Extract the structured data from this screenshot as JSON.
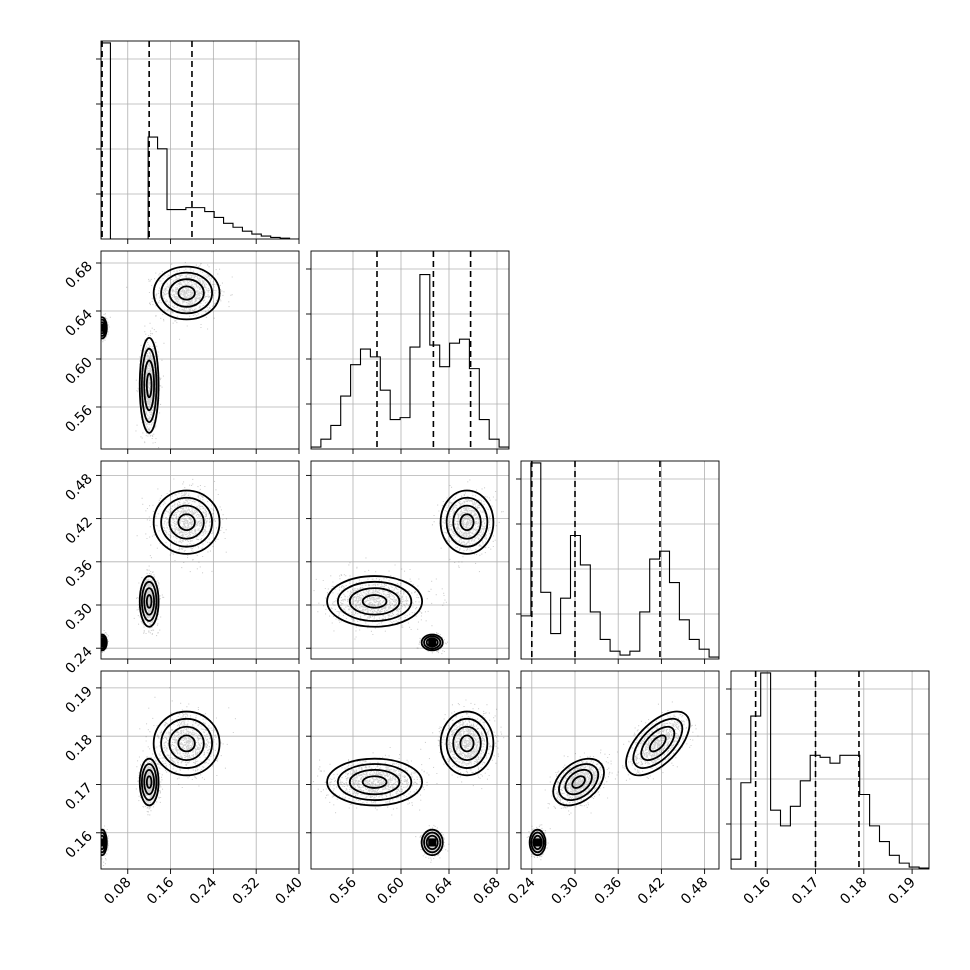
{
  "chart_data": {
    "type": "corner",
    "parameters": [
      {
        "range": [
          0.03,
          0.4
        ],
        "ticks": [
          0.08,
          0.16,
          0.24,
          0.32,
          0.4
        ],
        "tick_labels": [
          "0.08",
          "0.16",
          "0.24",
          "0.32",
          "0.40"
        ],
        "quantiles": [
          0.032,
          0.12,
          0.2
        ],
        "hist": [
          1.0,
          0.0,
          0.0,
          0.0,
          0.0,
          0.52,
          0.46,
          0.15,
          0.15,
          0.16,
          0.16,
          0.14,
          0.11,
          0.08,
          0.06,
          0.04,
          0.025,
          0.015,
          0.008,
          0.004,
          0.0
        ]
      },
      {
        "range": [
          0.525,
          0.69
        ],
        "ticks": [
          0.56,
          0.6,
          0.64,
          0.68
        ],
        "tick_labels": [
          "0.56",
          "0.60",
          "0.64",
          "0.68"
        ],
        "quantiles": [
          0.58,
          0.627,
          0.658
        ],
        "hist": [
          0.01,
          0.05,
          0.12,
          0.27,
          0.43,
          0.51,
          0.47,
          0.3,
          0.15,
          0.16,
          0.52,
          0.89,
          0.53,
          0.42,
          0.54,
          0.56,
          0.41,
          0.15,
          0.05,
          0.01
        ]
      },
      {
        "range": [
          0.225,
          0.5
        ],
        "ticks": [
          0.24,
          0.3,
          0.36,
          0.42,
          0.48
        ],
        "tick_labels": [
          "0.24",
          "0.30",
          "0.36",
          "0.42",
          "0.48"
        ],
        "quantiles": [
          0.24,
          0.3,
          0.418
        ],
        "hist": [
          0.22,
          1.0,
          0.34,
          0.13,
          0.31,
          0.63,
          0.48,
          0.24,
          0.1,
          0.04,
          0.02,
          0.04,
          0.24,
          0.51,
          0.55,
          0.39,
          0.2,
          0.1,
          0.05,
          0.01
        ]
      },
      {
        "range": [
          0.1525,
          0.1935
        ],
        "ticks": [
          0.16,
          0.17,
          0.18,
          0.19
        ],
        "tick_labels": [
          "0.16",
          "0.17",
          "0.18",
          "0.19"
        ],
        "quantiles": [
          0.1576,
          0.17,
          0.179
        ],
        "hist": [
          0.05,
          0.44,
          0.78,
          1.0,
          0.3,
          0.22,
          0.32,
          0.45,
          0.58,
          0.57,
          0.54,
          0.58,
          0.58,
          0.38,
          0.22,
          0.14,
          0.07,
          0.03,
          0.01,
          0.005
        ]
      }
    ],
    "modes": [
      {
        "means": [
          0.19,
          0.655,
          0.415,
          0.1785
        ],
        "sds": [
          0.028,
          0.01,
          0.02,
          0.003
        ],
        "weight": 0.35
      },
      {
        "means": [
          0.12,
          0.578,
          0.305,
          0.1705
        ],
        "sds": [
          0.008,
          0.018,
          0.016,
          0.0022
        ],
        "weight": 0.4
      },
      {
        "means": [
          0.032,
          0.626,
          0.248,
          0.158
        ],
        "sds": [
          0.004,
          0.004,
          0.005,
          0.0012
        ],
        "weight": 0.25
      }
    ],
    "correlations": [
      [
        [
          0,
          1
        ],
        [
          0.0,
          0.0,
          0.0
        ]
      ],
      [
        [
          0,
          2
        ],
        [
          0.0,
          0.0,
          0.0
        ]
      ],
      [
        [
          0,
          3
        ],
        [
          0.0,
          0.0,
          0.0
        ]
      ],
      [
        [
          1,
          2
        ],
        [
          0.0,
          0.0,
          0.0
        ]
      ],
      [
        [
          1,
          3
        ],
        [
          0.0,
          0.0,
          0.0
        ]
      ],
      [
        [
          2,
          3
        ],
        [
          0.6,
          0.4,
          0.0
        ]
      ]
    ],
    "grid": true
  }
}
